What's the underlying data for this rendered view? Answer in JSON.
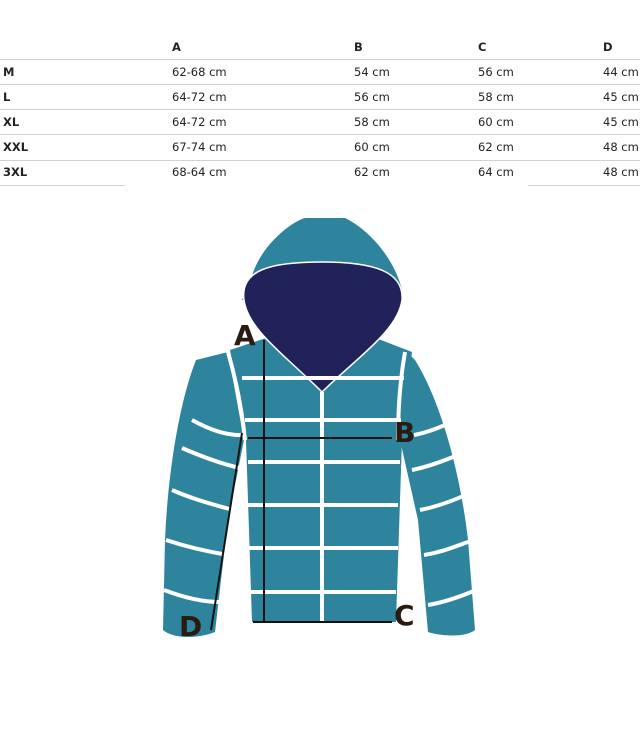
{
  "chart_data": {
    "type": "table",
    "columns": [
      "",
      "A",
      "B",
      "C",
      "D"
    ],
    "rows": [
      {
        "size": "M",
        "A": "62-68 cm",
        "B": "54 cm",
        "C": "56 cm",
        "D": "44 cm"
      },
      {
        "size": "L",
        "A": "64-72 cm",
        "B": "56 cm",
        "C": "58 cm",
        "D": "45 cm"
      },
      {
        "size": "XL",
        "A": "64-72 cm",
        "B": "58 cm",
        "C": "60 cm",
        "D": "45 cm"
      },
      {
        "size": "XXL",
        "A": "67-74 cm",
        "B": "60 cm",
        "C": "62 cm",
        "D": "48 cm"
      },
      {
        "size": "3XL",
        "A": "68-64 cm",
        "B": "62 cm",
        "C": "64 cm",
        "D": "48 cm"
      }
    ]
  },
  "diagram": {
    "labels": {
      "a": "A",
      "b": "B",
      "c": "C",
      "d": "D"
    },
    "colors": {
      "jacket": "#2f849d",
      "hood_lining": "#22225a",
      "measure_line": "#111111",
      "quilt_seams": "#ffffff"
    }
  }
}
